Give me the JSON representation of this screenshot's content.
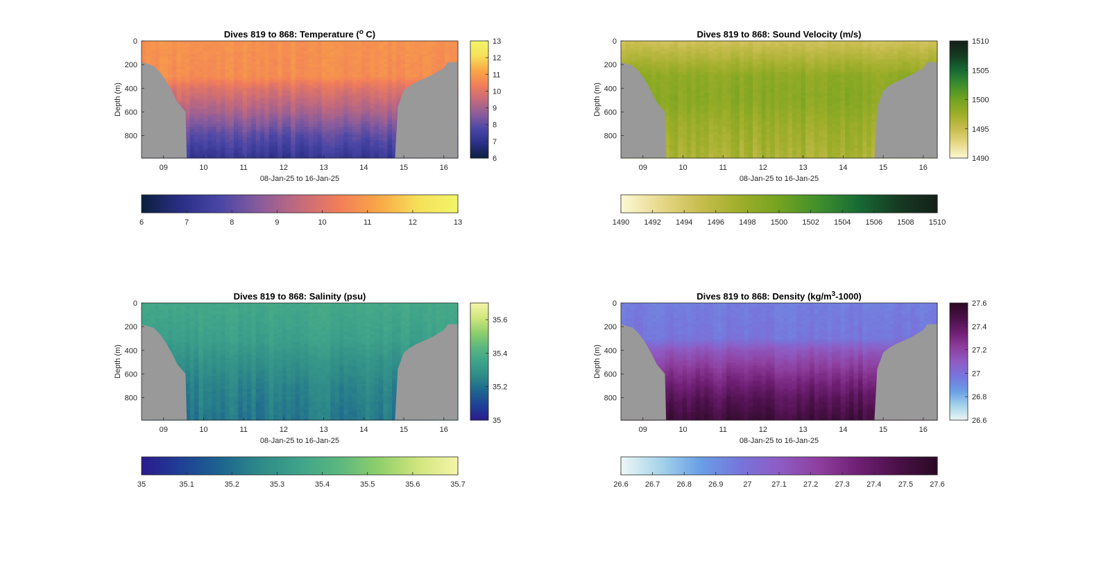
{
  "chart_data": [
    {
      "type": "heatmap",
      "title": "Dives 819 to 868: Temperature (",
      "title_sup": "o",
      "title_end": " C)",
      "xlabel": "08-Jan-25 to 16-Jan-25",
      "ylabel": "Depth (m)",
      "x_ticks": [
        "09",
        "10",
        "11",
        "12",
        "13",
        "14",
        "15",
        "16"
      ],
      "x_tick_days": [
        9,
        10,
        11,
        12,
        13,
        14,
        15,
        16
      ],
      "xlim": [
        8.45,
        16.35
      ],
      "y_ticks": [
        "0",
        "200",
        "400",
        "600",
        "800"
      ],
      "y_tick_values": [
        0,
        200,
        400,
        600,
        800
      ],
      "ylim": [
        0,
        990
      ],
      "clim": [
        6,
        13
      ],
      "colorbar_right_ticks": [
        "6",
        "7",
        "8",
        "9",
        "10",
        "11",
        "12",
        "13"
      ],
      "colorbar_right_values": [
        6,
        7,
        8,
        9,
        10,
        11,
        12,
        13
      ],
      "colorbar_bottom_ticks": [
        "6",
        "7",
        "8",
        "9",
        "10",
        "11",
        "12",
        "13"
      ],
      "colorbar_bottom_values": [
        6,
        7,
        8,
        9,
        10,
        11,
        12,
        13
      ],
      "colormap": [
        "#0b1f3b",
        "#2a2f86",
        "#4a46a6",
        "#8a5c9c",
        "#c46a7c",
        "#f27e59",
        "#f9a746",
        "#f6e05a",
        "#f2f56a"
      ],
      "profile": {
        "depths": [
          0,
          300,
          400,
          600,
          800,
          990
        ],
        "values": [
          10.8,
          10.7,
          10.0,
          9.1,
          8.0,
          7.2
        ]
      }
    },
    {
      "type": "heatmap",
      "title": "Dives 819 to 868: Sound Velocity (m/s)",
      "xlabel": "08-Jan-25 to 16-Jan-25",
      "ylabel": "Depth (m)",
      "x_ticks": [
        "09",
        "10",
        "11",
        "12",
        "13",
        "14",
        "15",
        "16"
      ],
      "x_tick_days": [
        9,
        10,
        11,
        12,
        13,
        14,
        15,
        16
      ],
      "xlim": [
        8.45,
        16.35
      ],
      "y_ticks": [
        "0",
        "200",
        "400",
        "600",
        "800"
      ],
      "y_tick_values": [
        0,
        200,
        400,
        600,
        800
      ],
      "ylim": [
        0,
        990
      ],
      "clim": [
        1490,
        1510
      ],
      "colorbar_right_ticks": [
        "1490",
        "1495",
        "1500",
        "1505",
        "1510"
      ],
      "colorbar_right_values": [
        1490,
        1495,
        1500,
        1505,
        1510
      ],
      "colorbar_bottom_ticks": [
        "1490",
        "1492",
        "1494",
        "1496",
        "1498",
        "1500",
        "1502",
        "1504",
        "1506",
        "1508",
        "1510"
      ],
      "colorbar_bottom_values": [
        1490,
        1492,
        1494,
        1496,
        1498,
        1500,
        1502,
        1504,
        1506,
        1508,
        1510
      ],
      "colormap": [
        "#fdf8d6",
        "#e7d98a",
        "#c8bd4f",
        "#9fae2a",
        "#74a320",
        "#3f8f2c",
        "#176b34",
        "#163b22",
        "#14201a"
      ],
      "profile": {
        "depths": [
          0,
          150,
          300,
          500,
          700,
          990
        ],
        "values": [
          1494.5,
          1496.5,
          1498.5,
          1498.8,
          1497.8,
          1496.8
        ]
      }
    },
    {
      "type": "heatmap",
      "title": "Dives 819 to 868: Salinity (psu)",
      "xlabel": "08-Jan-25 to 16-Jan-25",
      "ylabel": "Depth (m)",
      "x_ticks": [
        "09",
        "10",
        "11",
        "12",
        "13",
        "14",
        "15",
        "16"
      ],
      "x_tick_days": [
        9,
        10,
        11,
        12,
        13,
        14,
        15,
        16
      ],
      "xlim": [
        8.45,
        16.35
      ],
      "y_ticks": [
        "0",
        "200",
        "400",
        "600",
        "800"
      ],
      "y_tick_values": [
        0,
        200,
        400,
        600,
        800
      ],
      "ylim": [
        0,
        990
      ],
      "clim": [
        35,
        35.7
      ],
      "colorbar_right_ticks": [
        "35",
        "35.2",
        "35.4",
        "35.6"
      ],
      "colorbar_right_values": [
        35,
        35.2,
        35.4,
        35.6
      ],
      "colorbar_bottom_ticks": [
        "35",
        "35.1",
        "35.2",
        "35.3",
        "35.4",
        "35.5",
        "35.6",
        "35.7"
      ],
      "colorbar_bottom_values": [
        35,
        35.1,
        35.2,
        35.3,
        35.4,
        35.5,
        35.6,
        35.7
      ],
      "colormap": [
        "#2b1a8c",
        "#1f3f96",
        "#1d6490",
        "#2e8a88",
        "#3ea38a",
        "#5bb77f",
        "#8fcf6a",
        "#d0e57e",
        "#f5f4a8"
      ],
      "profile": {
        "depths": [
          0,
          300,
          500,
          700,
          990
        ],
        "values": [
          35.37,
          35.34,
          35.29,
          35.25,
          35.22
        ]
      }
    },
    {
      "type": "heatmap",
      "title": "Dives 819 to 868: Density (kg/m",
      "title_sup": "3",
      "title_end": "-1000)",
      "xlabel": "08-Jan-25 to 16-Jan-25",
      "ylabel": "Depth (m)",
      "x_ticks": [
        "09",
        "10",
        "11",
        "12",
        "13",
        "14",
        "15",
        "16"
      ],
      "x_tick_days": [
        9,
        10,
        11,
        12,
        13,
        14,
        15,
        16
      ],
      "xlim": [
        8.45,
        16.35
      ],
      "y_ticks": [
        "0",
        "200",
        "400",
        "600",
        "800"
      ],
      "y_tick_values": [
        0,
        200,
        400,
        600,
        800
      ],
      "ylim": [
        0,
        990
      ],
      "clim": [
        26.6,
        27.6
      ],
      "colorbar_right_ticks": [
        "26.6",
        "26.8",
        "27",
        "27.2",
        "27.4",
        "27.6"
      ],
      "colorbar_right_values": [
        26.6,
        26.8,
        27,
        27.2,
        27.4,
        27.6
      ],
      "colorbar_bottom_ticks": [
        "26.6",
        "26.7",
        "26.8",
        "26.9",
        "27",
        "27.1",
        "27.2",
        "27.3",
        "27.4",
        "27.5",
        "27.6"
      ],
      "colorbar_bottom_values": [
        26.6,
        26.7,
        26.8,
        26.9,
        27,
        27.1,
        27.2,
        27.3,
        27.4,
        27.5,
        27.6
      ],
      "colormap": [
        "#eef6f6",
        "#a6d4ea",
        "#6a9fe6",
        "#7676dc",
        "#8e5cc4",
        "#8e3f9e",
        "#6f1f74",
        "#4a1048",
        "#2a0a24"
      ],
      "profile": {
        "depths": [
          0,
          300,
          400,
          600,
          800,
          990
        ],
        "values": [
          26.95,
          26.98,
          27.12,
          27.28,
          27.42,
          27.52
        ]
      }
    }
  ],
  "colors": {
    "seafloor": "#999999",
    "axis": "#262626"
  }
}
